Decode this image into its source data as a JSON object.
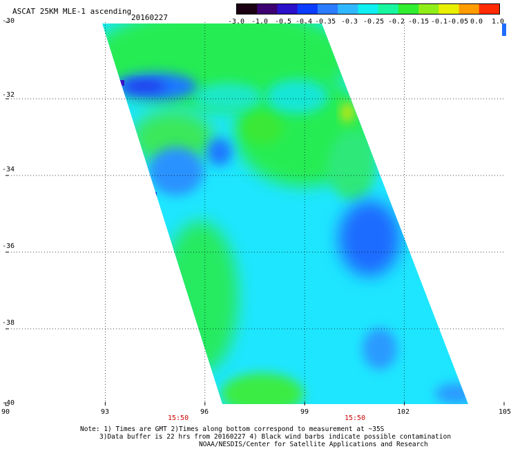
{
  "header": {
    "title": "ASCAT 25KM MLE-1 ascending",
    "date": "20160227"
  },
  "colorbar": {
    "labels": [
      "-3.0",
      "-1.0",
      "-0.5",
      "-0.4",
      "-0.35",
      "-0.3",
      "-0.25",
      "-0.2",
      "-0.15",
      "-0.1",
      "-0.05",
      "0.0",
      "1.0"
    ],
    "colors": [
      "#1a0010",
      "#3c0070",
      "#2a10c8",
      "#0a3cff",
      "#2c7cff",
      "#30b8ff",
      "#10f0f0",
      "#18f7a0",
      "#30ee30",
      "#90ee18",
      "#e8f000",
      "#ff9c00",
      "#ff2a00"
    ]
  },
  "axes": {
    "lat_labels": [
      "-30",
      "-32",
      "-34",
      "-36",
      "-38",
      "-40"
    ],
    "lon_labels": [
      "90",
      "93",
      "96",
      "99",
      "102",
      "105"
    ],
    "times": [
      "15:50",
      "15:50"
    ]
  },
  "notes": {
    "line1": "Note: 1) Times are GMT 2)Times along bottom correspond to measurement at ~35S",
    "line2": "3)Data buffer is 22 hrs from 20160227 4) Black wind barbs indicate possible contamination",
    "line3": "NOAA/NESDIS/Center for Satellite Applications and Research"
  }
}
